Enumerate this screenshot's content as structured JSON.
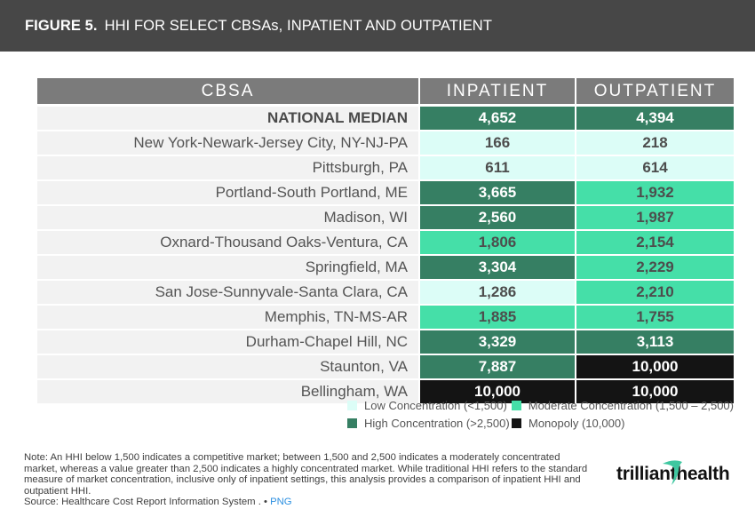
{
  "header": {
    "figure_label": "FIGURE 5.",
    "title": "HHI FOR SELECT CBSAs, INPATIENT AND OUTPATIENT"
  },
  "colors": {
    "title_bar": "#474747",
    "table_header": "#7b7b7b",
    "low": "#dcfdf7",
    "moderate": "#45dfa8",
    "high": "#367f63",
    "monopoly": "#141414",
    "logo_accent": "#3fc7a0"
  },
  "chart_data": {
    "type": "table",
    "title": "HHI FOR SELECT CBSAs, INPATIENT AND OUTPATIENT",
    "columns": [
      "CBSA",
      "INPATIENT",
      "OUTPATIENT"
    ],
    "rows": [
      {
        "cbsa": "NATIONAL MEDIAN",
        "inpatient": "4,652",
        "inpatient_level": "high",
        "outpatient": "4,394",
        "outpatient_level": "high"
      },
      {
        "cbsa": "New York-Newark-Jersey City, NY-NJ-PA",
        "inpatient": "166",
        "inpatient_level": "low",
        "outpatient": "218",
        "outpatient_level": "low"
      },
      {
        "cbsa": "Pittsburgh, PA",
        "inpatient": "611",
        "inpatient_level": "low",
        "outpatient": "614",
        "outpatient_level": "low"
      },
      {
        "cbsa": "Portland-South Portland, ME",
        "inpatient": "3,665",
        "inpatient_level": "high",
        "outpatient": "1,932",
        "outpatient_level": "moderate"
      },
      {
        "cbsa": "Madison, WI",
        "inpatient": "2,560",
        "inpatient_level": "high",
        "outpatient": "1,987",
        "outpatient_level": "moderate"
      },
      {
        "cbsa": "Oxnard-Thousand Oaks-Ventura, CA",
        "inpatient": "1,806",
        "inpatient_level": "moderate",
        "outpatient": "2,154",
        "outpatient_level": "moderate"
      },
      {
        "cbsa": "Springfield, MA",
        "inpatient": "3,304",
        "inpatient_level": "high",
        "outpatient": "2,229",
        "outpatient_level": "moderate"
      },
      {
        "cbsa": "San Jose-Sunnyvale-Santa Clara, CA",
        "inpatient": "1,286",
        "inpatient_level": "low",
        "outpatient": "2,210",
        "outpatient_level": "moderate"
      },
      {
        "cbsa": "Memphis, TN-MS-AR",
        "inpatient": "1,885",
        "inpatient_level": "moderate",
        "outpatient": "1,755",
        "outpatient_level": "moderate"
      },
      {
        "cbsa": "Durham-Chapel Hill, NC",
        "inpatient": "3,329",
        "inpatient_level": "high",
        "outpatient": "3,113",
        "outpatient_level": "high"
      },
      {
        "cbsa": "Staunton, VA",
        "inpatient": "7,887",
        "inpatient_level": "high",
        "outpatient": "10,000",
        "outpatient_level": "monopoly"
      },
      {
        "cbsa": "Bellingham, WA",
        "inpatient": "10,000",
        "inpatient_level": "monopoly",
        "outpatient": "10,000",
        "outpatient_level": "monopoly"
      }
    ],
    "legend": [
      {
        "level": "low",
        "label": "Low Concentration (<1,500)"
      },
      {
        "level": "moderate",
        "label": "Moderate Concentration (1,500 – 2,500)"
      },
      {
        "level": "high",
        "label": "High Concentration (>2,500)"
      },
      {
        "level": "monopoly",
        "label": "Monopoly (10,000)"
      }
    ]
  },
  "footer": {
    "note": "Note: An HHI below 1,500 indicates a competitive market; between 1,500 and 2,500 indicates a moderately concentrated market, whereas a value greater than 2,500 indicates a highly concentrated market. While traditional HHI refers to the standard measure of market concentration, inclusive only of inpatient settings, this analysis provides a comparison of inpatient HHI and outpatient HHI.",
    "source": "Source: Healthcare Cost Report Information System .",
    "separator": "•",
    "link_label": "PNG"
  },
  "logo": {
    "part1": "trilliant",
    "part2": "health"
  }
}
